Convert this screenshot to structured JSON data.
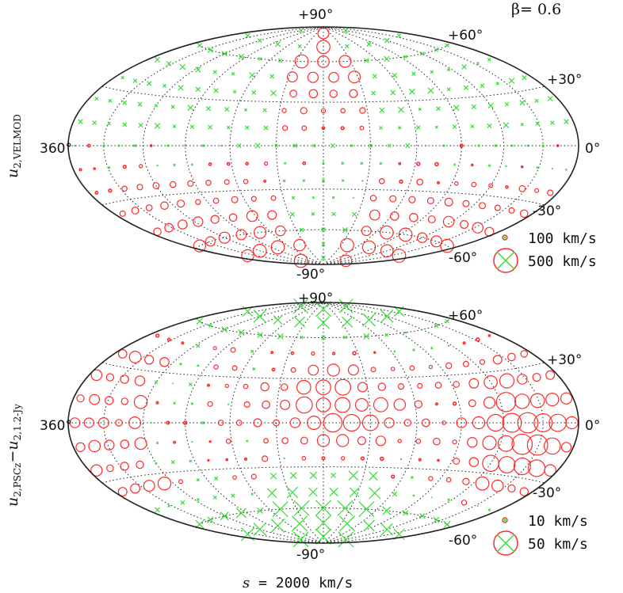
{
  "beta_label": "β= 0.6",
  "footer_label": "s = 2000 km/s",
  "colors": {
    "positive": "#ff2a2a",
    "negative": "#33dd33",
    "grid": "#222222"
  },
  "chart_data": [
    {
      "type": "scatter",
      "projection": "Aitoff/Hammer all-sky",
      "ylabel": "u2,VELMOD",
      "ylabel_main": "u",
      "ylabel_sub": "2,VELMOD",
      "lon_labels": {
        "left": "360°",
        "right": "0°"
      },
      "lat_labels": [
        "+90°",
        "+60°",
        "+30°",
        "-30°",
        "-60°",
        "-90°"
      ],
      "legend": [
        {
          "label": "100 km/s",
          "value": 100
        },
        {
          "label": "500 km/s",
          "value": 500
        }
      ],
      "symbols": {
        "circle": "positive (red)",
        "cross": "negative (green)"
      },
      "field_description": "Red circles dominate the southern hemisphere rim and central northern longitudes; green crosses dominate the northern wings and the central southern region."
    },
    {
      "type": "scatter",
      "projection": "Aitoff/Hammer all-sky",
      "ylabel": "u²2,PSCz − u²2,1.2-Jy",
      "ylabel_main_a": "u",
      "ylabel_sub_a": "2,PSCz",
      "ylabel_sep": "−u",
      "ylabel_sub_b": "2,1.2-Jy",
      "lon_labels": {
        "left": "360°",
        "right": "0°"
      },
      "lat_labels": [
        "+90°",
        "+60°",
        "+30°",
        "-30°",
        "-60°",
        "-90°"
      ],
      "legend": [
        {
          "label": "10 km/s",
          "value": 10
        },
        {
          "label": "50 km/s",
          "value": 50
        }
      ],
      "symbols": {
        "circle": "positive (red)",
        "cross": "negative (green)"
      },
      "field_description": "Large red circles fill the left equatorial band and central region; large green crosses cluster near both poles."
    }
  ]
}
